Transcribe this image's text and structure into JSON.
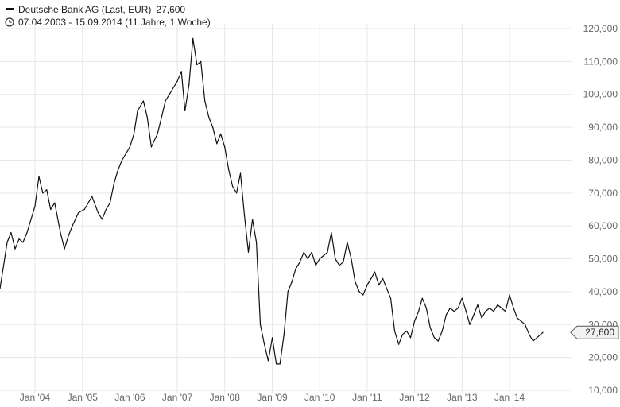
{
  "header": {
    "series_name": "Deutsche Bank AG (Last, EUR)",
    "last_value": "27,600",
    "date_range": "07.04.2003 - 15.09.2014 (11 Jahre, 1 Woche)"
  },
  "colors": {
    "line": "#111111",
    "grid": "#e6e6e6",
    "tick_text": "#666666"
  },
  "chart_data": {
    "type": "line",
    "title": "Deutsche Bank AG (Last, EUR)",
    "x_range": [
      "2003-04-07",
      "2014-09-15"
    ],
    "ylim": [
      10000,
      120000
    ],
    "y_ticks": [
      {
        "value": 120000,
        "label": "120,000"
      },
      {
        "value": 110000,
        "label": "110,000"
      },
      {
        "value": 100000,
        "label": "100,000"
      },
      {
        "value": 90000,
        "label": "90,000"
      },
      {
        "value": 80000,
        "label": "80,000"
      },
      {
        "value": 70000,
        "label": "70,000"
      },
      {
        "value": 60000,
        "label": "60,000"
      },
      {
        "value": 50000,
        "label": "50,000"
      },
      {
        "value": 40000,
        "label": "40,000"
      },
      {
        "value": 30000,
        "label": "30,000"
      },
      {
        "value": 20000,
        "label": "20,000"
      },
      {
        "value": 10000,
        "label": "10,000"
      }
    ],
    "x_ticks": [
      {
        "date": "2004-01-01",
        "label": "Jan '04"
      },
      {
        "date": "2005-01-01",
        "label": "Jan '05"
      },
      {
        "date": "2006-01-01",
        "label": "Jan '06"
      },
      {
        "date": "2007-01-01",
        "label": "Jan '07"
      },
      {
        "date": "2008-01-01",
        "label": "Jan '08"
      },
      {
        "date": "2009-01-01",
        "label": "Jan '09"
      },
      {
        "date": "2010-01-01",
        "label": "Jan '10"
      },
      {
        "date": "2011-01-01",
        "label": "Jan '11"
      },
      {
        "date": "2012-01-01",
        "label": "Jan '12"
      },
      {
        "date": "2013-01-01",
        "label": "Jan '13"
      },
      {
        "date": "2014-01-01",
        "label": "Jan '14"
      }
    ],
    "last_value_label": "27,600",
    "grid": true,
    "series": [
      {
        "name": "Deutsche Bank AG (Last, EUR)",
        "points": [
          [
            "2003-04-07",
            41000
          ],
          [
            "2003-05-01",
            47000
          ],
          [
            "2003-06-01",
            55000
          ],
          [
            "2003-07-01",
            58000
          ],
          [
            "2003-08-01",
            53000
          ],
          [
            "2003-09-01",
            56000
          ],
          [
            "2003-10-01",
            55000
          ],
          [
            "2003-11-01",
            58000
          ],
          [
            "2004-01-01",
            66000
          ],
          [
            "2004-02-01",
            75000
          ],
          [
            "2004-03-01",
            70000
          ],
          [
            "2004-04-01",
            71000
          ],
          [
            "2004-05-01",
            65000
          ],
          [
            "2004-06-01",
            67000
          ],
          [
            "2004-07-15",
            58000
          ],
          [
            "2004-08-15",
            53000
          ],
          [
            "2004-09-15",
            57000
          ],
          [
            "2004-10-15",
            60000
          ],
          [
            "2004-12-01",
            64000
          ],
          [
            "2005-01-15",
            65000
          ],
          [
            "2005-02-15",
            67000
          ],
          [
            "2005-03-15",
            69000
          ],
          [
            "2005-05-01",
            64000
          ],
          [
            "2005-06-01",
            62000
          ],
          [
            "2005-07-01",
            65000
          ],
          [
            "2005-08-01",
            67000
          ],
          [
            "2005-09-01",
            73000
          ],
          [
            "2005-10-01",
            77000
          ],
          [
            "2005-11-01",
            80000
          ],
          [
            "2006-01-01",
            84000
          ],
          [
            "2006-02-01",
            88000
          ],
          [
            "2006-03-01",
            95000
          ],
          [
            "2006-04-15",
            98000
          ],
          [
            "2006-05-15",
            93000
          ],
          [
            "2006-06-15",
            84000
          ],
          [
            "2006-08-01",
            88000
          ],
          [
            "2006-09-01",
            93000
          ],
          [
            "2006-10-01",
            98000
          ],
          [
            "2006-11-01",
            100000
          ],
          [
            "2006-12-01",
            102000
          ],
          [
            "2007-01-01",
            104000
          ],
          [
            "2007-02-01",
            107000
          ],
          [
            "2007-03-01",
            95000
          ],
          [
            "2007-04-01",
            103000
          ],
          [
            "2007-05-01",
            117000
          ],
          [
            "2007-06-01",
            109000
          ],
          [
            "2007-07-01",
            110000
          ],
          [
            "2007-08-01",
            98000
          ],
          [
            "2007-09-01",
            93000
          ],
          [
            "2007-10-01",
            90000
          ],
          [
            "2007-11-01",
            85000
          ],
          [
            "2007-12-01",
            88000
          ],
          [
            "2008-01-01",
            84000
          ],
          [
            "2008-02-01",
            77000
          ],
          [
            "2008-03-01",
            72000
          ],
          [
            "2008-04-01",
            70000
          ],
          [
            "2008-05-01",
            76000
          ],
          [
            "2008-06-01",
            63000
          ],
          [
            "2008-07-01",
            52000
          ],
          [
            "2008-08-01",
            62000
          ],
          [
            "2008-09-01",
            55000
          ],
          [
            "2008-10-01",
            30000
          ],
          [
            "2008-11-01",
            24000
          ],
          [
            "2008-12-01",
            19000
          ],
          [
            "2009-01-01",
            26000
          ],
          [
            "2009-02-01",
            18000
          ],
          [
            "2009-03-01",
            18000
          ],
          [
            "2009-04-01",
            27000
          ],
          [
            "2009-05-01",
            40000
          ],
          [
            "2009-06-01",
            43000
          ],
          [
            "2009-07-01",
            47000
          ],
          [
            "2009-08-01",
            49000
          ],
          [
            "2009-09-01",
            52000
          ],
          [
            "2009-10-01",
            50000
          ],
          [
            "2009-11-01",
            52000
          ],
          [
            "2009-12-01",
            48000
          ],
          [
            "2010-01-01",
            50000
          ],
          [
            "2010-02-01",
            51000
          ],
          [
            "2010-03-01",
            52000
          ],
          [
            "2010-04-01",
            58000
          ],
          [
            "2010-05-01",
            50000
          ],
          [
            "2010-06-01",
            48000
          ],
          [
            "2010-07-01",
            49000
          ],
          [
            "2010-08-01",
            55000
          ],
          [
            "2010-09-01",
            50000
          ],
          [
            "2010-10-01",
            43000
          ],
          [
            "2010-11-01",
            40000
          ],
          [
            "2010-12-01",
            39000
          ],
          [
            "2011-01-01",
            42000
          ],
          [
            "2011-02-01",
            44000
          ],
          [
            "2011-03-01",
            46000
          ],
          [
            "2011-04-01",
            42000
          ],
          [
            "2011-05-01",
            44000
          ],
          [
            "2011-06-01",
            41000
          ],
          [
            "2011-07-01",
            38000
          ],
          [
            "2011-08-01",
            28000
          ],
          [
            "2011-09-01",
            24000
          ],
          [
            "2011-10-01",
            27000
          ],
          [
            "2011-11-01",
            28000
          ],
          [
            "2011-12-01",
            26000
          ],
          [
            "2012-01-01",
            31000
          ],
          [
            "2012-02-01",
            34000
          ],
          [
            "2012-03-01",
            38000
          ],
          [
            "2012-04-01",
            35000
          ],
          [
            "2012-05-01",
            29000
          ],
          [
            "2012-06-01",
            26000
          ],
          [
            "2012-07-01",
            25000
          ],
          [
            "2012-08-01",
            28000
          ],
          [
            "2012-09-01",
            33000
          ],
          [
            "2012-10-01",
            35000
          ],
          [
            "2012-11-01",
            34000
          ],
          [
            "2012-12-01",
            35000
          ],
          [
            "2013-01-01",
            38000
          ],
          [
            "2013-02-01",
            34000
          ],
          [
            "2013-03-01",
            30000
          ],
          [
            "2013-04-01",
            33000
          ],
          [
            "2013-05-01",
            36000
          ],
          [
            "2013-06-01",
            32000
          ],
          [
            "2013-07-01",
            34000
          ],
          [
            "2013-08-01",
            35000
          ],
          [
            "2013-09-01",
            34000
          ],
          [
            "2013-10-01",
            36000
          ],
          [
            "2013-11-01",
            35000
          ],
          [
            "2013-12-01",
            34000
          ],
          [
            "2014-01-01",
            39000
          ],
          [
            "2014-02-01",
            35000
          ],
          [
            "2014-03-01",
            32000
          ],
          [
            "2014-04-01",
            31000
          ],
          [
            "2014-05-01",
            30000
          ],
          [
            "2014-06-01",
            27000
          ],
          [
            "2014-07-01",
            25000
          ],
          [
            "2014-08-01",
            26000
          ],
          [
            "2014-09-15",
            27600
          ]
        ]
      }
    ]
  }
}
